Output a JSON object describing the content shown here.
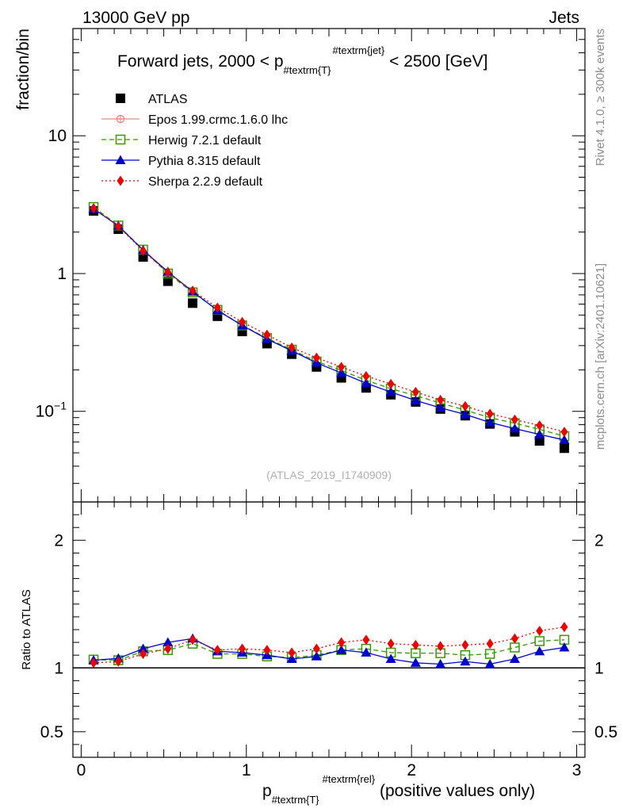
{
  "header": {
    "left": "13000 GeV pp",
    "right": "Jets"
  },
  "side_labels": {
    "top": "Rivet 4.1.0, ≥ 300k events",
    "bottom": "mcplots.cern.ch [arXiv:2401.10621]"
  },
  "watermark": "(ATLAS_2019_I1740909)",
  "chart_data": {
    "type": "scatter",
    "title": "Forward jets, 2000 < p_{#textrm{T}}^{#textrm{jet}} < 2500 [GeV]",
    "title_parts": {
      "before": "Forward jets, 2000 < p",
      "sub": "#textrm{T}",
      "sup": "#textrm{jet}",
      "after": " < 2500 [GeV]"
    },
    "xlabel": "p_{#textrm{T}}^{#textrm{rel}} (positive values only)",
    "xlabel_parts": {
      "main": "p",
      "sub": "#textrm{T}",
      "sup": "#textrm{rel}",
      "after": " (positive values only)"
    },
    "ylabel": "fraction/bin",
    "ratio_ylabel": "Ratio to ATLAS",
    "xlim": [
      -0.05,
      3.05
    ],
    "ylim": [
      0.022,
      60
    ],
    "yscale": "log",
    "ratio_ylim": [
      0.3,
      2.3
    ],
    "x_ticks": [
      "0",
      "1",
      "2",
      "3"
    ],
    "y_ticks": [
      "10",
      "1",
      "10^-1"
    ],
    "ratio_y_ticks": [
      "2",
      "1",
      "0.5"
    ],
    "x": [
      0.075,
      0.225,
      0.375,
      0.525,
      0.675,
      0.825,
      0.975,
      1.125,
      1.275,
      1.425,
      1.575,
      1.725,
      1.875,
      2.025,
      2.175,
      2.325,
      2.475,
      2.625,
      2.775,
      2.925
    ],
    "legend": [
      "ATLAS",
      "Epos 1.99.crmc.1.6.0 lhc",
      "Herwig 7.2.1 default",
      "Pythia 8.315 default",
      "Sherpa 2.2.9 default"
    ],
    "series": [
      {
        "name": "ATLAS",
        "color": "#000000",
        "marker": "square-filled",
        "values": [
          2.85,
          2.1,
          1.32,
          0.88,
          0.61,
          0.49,
          0.38,
          0.31,
          0.26,
          0.21,
          0.175,
          0.148,
          0.132,
          0.117,
          0.104,
          0.093,
          0.081,
          0.071,
          0.061,
          0.054
        ],
        "ratio": [
          1,
          1,
          1,
          1,
          1,
          1,
          1,
          1,
          1,
          1,
          1,
          1,
          1,
          1,
          1,
          1,
          1,
          1,
          1,
          1
        ]
      },
      {
        "name": "Epos 1.99.crmc.1.6.0 lhc",
        "color": "#f08080",
        "marker": "open-circle-cross",
        "line": "solid",
        "values": [],
        "ratio": []
      },
      {
        "name": "Herwig 7.2.1 default",
        "color": "#339900",
        "marker": "open-square",
        "line": "dashed",
        "values": [
          3.04,
          2.23,
          1.49,
          1.0,
          0.73,
          0.545,
          0.42,
          0.34,
          0.28,
          0.23,
          0.198,
          0.168,
          0.146,
          0.13,
          0.115,
          0.102,
          0.09,
          0.082,
          0.074,
          0.066
        ],
        "ratio": [
          1.065,
          1.06,
          1.13,
          1.14,
          1.19,
          1.11,
          1.11,
          1.09,
          1.08,
          1.1,
          1.14,
          1.15,
          1.12,
          1.115,
          1.115,
          1.1,
          1.11,
          1.16,
          1.21,
          1.22
        ]
      },
      {
        "name": "Pythia 8.315 default",
        "color": "#0000cc",
        "marker": "triangle-filled",
        "line": "solid",
        "values": [
          2.95,
          2.22,
          1.48,
          1.03,
          0.74,
          0.54,
          0.42,
          0.335,
          0.275,
          0.225,
          0.19,
          0.16,
          0.138,
          0.12,
          0.106,
          0.095,
          0.083,
          0.075,
          0.068,
          0.062
        ],
        "ratio": [
          1.06,
          1.075,
          1.15,
          1.2,
          1.23,
          1.13,
          1.12,
          1.1,
          1.07,
          1.09,
          1.14,
          1.12,
          1.07,
          1.04,
          1.03,
          1.05,
          1.03,
          1.07,
          1.13,
          1.16
        ]
      },
      {
        "name": "Sherpa 2.2.9 default",
        "color": "#ee0000",
        "marker": "diamond-filled",
        "line": "dotted",
        "values": [
          2.98,
          2.2,
          1.46,
          1.02,
          0.75,
          0.565,
          0.445,
          0.36,
          0.29,
          0.245,
          0.21,
          0.18,
          0.158,
          0.138,
          0.121,
          0.109,
          0.096,
          0.087,
          0.079,
          0.071
        ],
        "ratio": [
          1.04,
          1.05,
          1.11,
          1.15,
          1.22,
          1.14,
          1.15,
          1.14,
          1.12,
          1.15,
          1.2,
          1.22,
          1.19,
          1.18,
          1.17,
          1.18,
          1.19,
          1.23,
          1.29,
          1.32
        ]
      }
    ]
  }
}
